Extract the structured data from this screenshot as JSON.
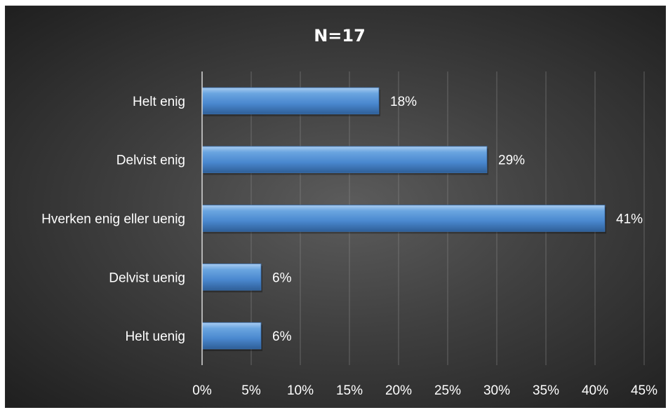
{
  "chart_data": {
    "type": "bar",
    "orientation": "horizontal",
    "title": "N=17",
    "categories": [
      "Helt enig",
      "Delvist enig",
      "Hverken enig eller uenig",
      "Delvist uenig",
      "Helt uenig"
    ],
    "values": [
      18,
      29,
      41,
      6,
      6
    ],
    "data_labels": [
      "18%",
      "29%",
      "41%",
      "6%",
      "6%"
    ],
    "xlim": [
      0,
      45
    ],
    "x_ticks": [
      "0%",
      "5%",
      "10%",
      "15%",
      "20%",
      "25%",
      "30%",
      "35%",
      "40%",
      "45%"
    ],
    "xlabel": "",
    "ylabel": "",
    "grid": true,
    "legend": "none",
    "bar_color": "#5b9bd5",
    "background_color": "#3f3f3f"
  }
}
